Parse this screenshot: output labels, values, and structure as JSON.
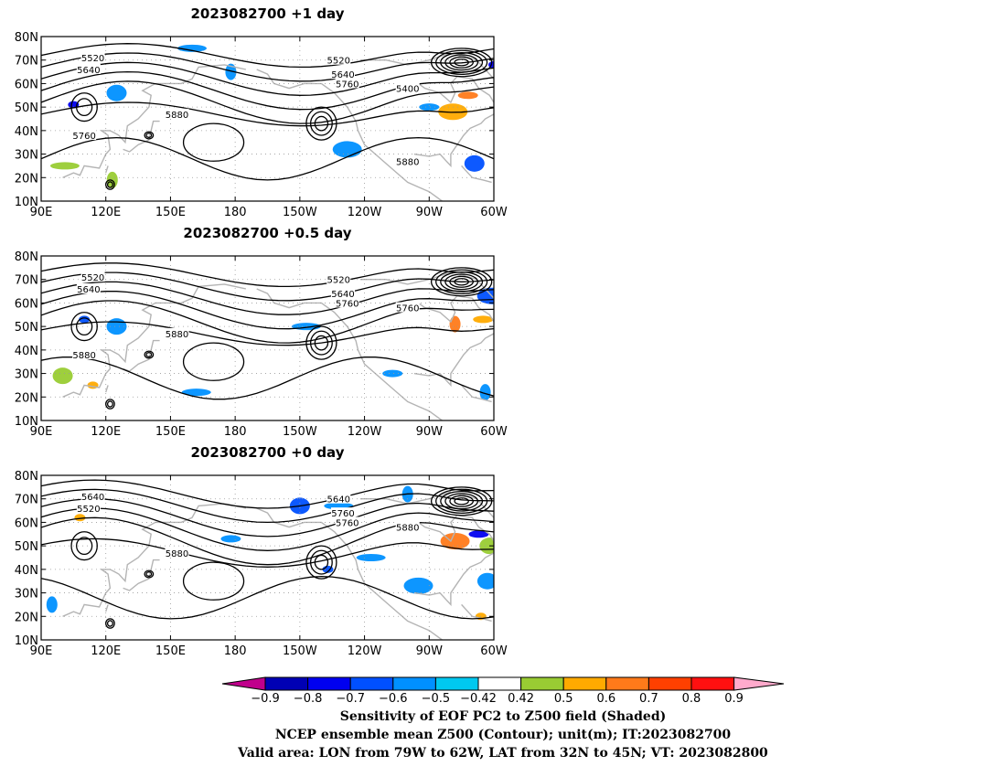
{
  "panels": [
    {
      "title": "2023082700  +1 day",
      "lat_labels": [
        "80N",
        "70N",
        "60N",
        "50N",
        "40N",
        "30N",
        "20N",
        "10N"
      ],
      "lon_labels": [
        "90E",
        "120E",
        "150E",
        "180",
        "150W",
        "120W",
        "90W",
        "60W"
      ],
      "contour_labels": [
        "5520",
        "5640",
        "5520",
        "5640",
        "5760",
        "5400",
        "5880",
        "5760",
        "5880"
      ],
      "shading": [
        {
          "lon": 105,
          "lat": 51,
          "value": -0.7
        },
        {
          "lon": 125,
          "lat": 56,
          "value": -0.5
        },
        {
          "lon": 160,
          "lat": 75,
          "value": -0.5
        },
        {
          "lon": 178,
          "lat": 65,
          "value": -0.5
        },
        {
          "lon": 288,
          "lat": 55,
          "value": 0.7
        },
        {
          "lon": 281,
          "lat": 48,
          "value": 0.6
        },
        {
          "lon": 300,
          "lat": 68,
          "value": -0.7
        },
        {
          "lon": 291,
          "lat": 26,
          "value": -0.6
        },
        {
          "lon": 101,
          "lat": 25,
          "value": 0.5
        },
        {
          "lon": 123,
          "lat": 19,
          "value": 0.5
        },
        {
          "lon": 270,
          "lat": 50,
          "value": -0.5
        },
        {
          "lon": 232,
          "lat": 32,
          "value": -0.5
        }
      ]
    },
    {
      "title": "2023082700  +0.5 day",
      "lat_labels": [
        "80N",
        "70N",
        "60N",
        "50N",
        "40N",
        "30N",
        "20N",
        "10N"
      ],
      "lon_labels": [
        "90E",
        "120E",
        "150E",
        "180",
        "150W",
        "120W",
        "90W",
        "60W"
      ],
      "contour_labels": [
        "5520",
        "5640",
        "5520",
        "5640",
        "5760",
        "5760",
        "5880",
        "5880"
      ],
      "shading": [
        {
          "lon": 110,
          "lat": 53,
          "value": -0.6
        },
        {
          "lon": 125,
          "lat": 50,
          "value": -0.5
        },
        {
          "lon": 213,
          "lat": 50,
          "value": -0.5
        },
        {
          "lon": 282,
          "lat": 51,
          "value": 0.7
        },
        {
          "lon": 295,
          "lat": 53,
          "value": 0.6
        },
        {
          "lon": 299,
          "lat": 63,
          "value": -0.6
        },
        {
          "lon": 114,
          "lat": 25,
          "value": 0.6
        },
        {
          "lon": 100,
          "lat": 29,
          "value": 0.5
        },
        {
          "lon": 162,
          "lat": 22,
          "value": -0.5
        },
        {
          "lon": 296,
          "lat": 22,
          "value": -0.5
        },
        {
          "lon": 253,
          "lat": 30,
          "value": -0.5
        }
      ]
    },
    {
      "title": "2023082700  +0 day",
      "lat_labels": [
        "80N",
        "70N",
        "60N",
        "50N",
        "40N",
        "30N",
        "20N",
        "10N"
      ],
      "lon_labels": [
        "90E",
        "120E",
        "150E",
        "180",
        "150W",
        "120W",
        "90W",
        "60W"
      ],
      "contour_labels": [
        "5640",
        "5520",
        "5640",
        "5760",
        "5760",
        "5880",
        "5880"
      ],
      "shading": [
        {
          "lon": 108,
          "lat": 62,
          "value": 0.6
        },
        {
          "lon": 210,
          "lat": 67,
          "value": -0.6
        },
        {
          "lon": 228,
          "lat": 67,
          "value": -0.5
        },
        {
          "lon": 260,
          "lat": 72,
          "value": -0.5
        },
        {
          "lon": 293,
          "lat": 55,
          "value": -0.7
        },
        {
          "lon": 282,
          "lat": 52,
          "value": 0.7
        },
        {
          "lon": 223,
          "lat": 40,
          "value": -0.6
        },
        {
          "lon": 298,
          "lat": 50,
          "value": 0.5
        },
        {
          "lon": 243,
          "lat": 45,
          "value": -0.5
        },
        {
          "lon": 95,
          "lat": 25,
          "value": -0.5
        },
        {
          "lon": 178,
          "lat": 53,
          "value": -0.5
        },
        {
          "lon": 265,
          "lat": 33,
          "value": -0.5
        },
        {
          "lon": 294,
          "lat": 20,
          "value": 0.6
        },
        {
          "lon": 297,
          "lat": 35,
          "value": -0.5
        }
      ]
    }
  ],
  "colorbar": {
    "labels": [
      "−0.9",
      "−0.8",
      "−0.7",
      "−0.6",
      "−0.5",
      "−0.42",
      "0.42",
      "0.5",
      "0.6",
      "0.7",
      "0.8",
      "0.9"
    ],
    "colors": [
      "#c0008c",
      "#0000b4",
      "#0000f0",
      "#0050ff",
      "#0090ff",
      "#00c8f0",
      "#ffffff",
      "#99cc33",
      "#ffaa00",
      "#ff7a1a",
      "#ff4000",
      "#ff1010",
      "#ffaacc"
    ]
  },
  "captions": [
    "Sensitivity of EOF PC2 to Z500 field (Shaded)",
    "NCEP ensemble mean Z500 (Contour); unit(m); IT:2023082700",
    "Valid area: LON from 79W to 62W, LAT from 32N to 45N; VT: 2023082800"
  ]
}
